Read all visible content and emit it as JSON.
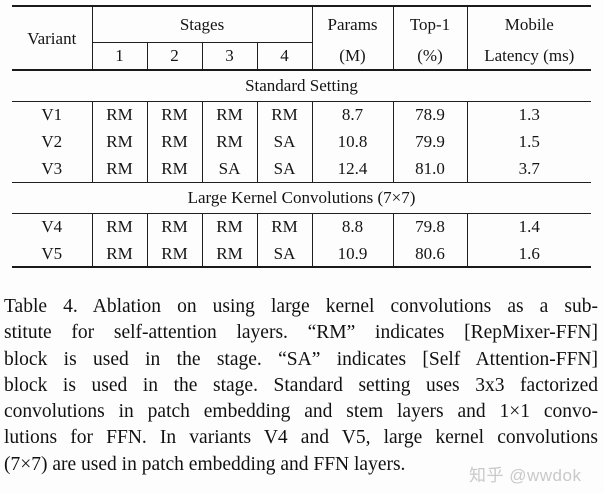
{
  "table": {
    "header": {
      "variant": "Variant",
      "stages_group": "Stages",
      "stage_cols": [
        "1",
        "2",
        "3",
        "4"
      ],
      "params_top": "Params",
      "params_bottom": "(M)",
      "top1_top": "Top-1",
      "top1_bottom": "(%)",
      "mobile_top": "Mobile",
      "mobile_bottom": "Latency (ms)"
    },
    "sections": [
      {
        "heading": "Standard Setting",
        "rows": [
          [
            "V1",
            "RM",
            "RM",
            "RM",
            "RM",
            "8.7",
            "78.9",
            "1.3"
          ],
          [
            "V2",
            "RM",
            "RM",
            "RM",
            "SA",
            "10.8",
            "79.9",
            "1.5"
          ],
          [
            "V3",
            "RM",
            "RM",
            "SA",
            "SA",
            "12.4",
            "81.0",
            "3.7"
          ]
        ]
      },
      {
        "heading": "Large Kernel Convolutions (7×7)",
        "rows": [
          [
            "V4",
            "RM",
            "RM",
            "RM",
            "RM",
            "8.8",
            "79.8",
            "1.4"
          ],
          [
            "V5",
            "RM",
            "RM",
            "RM",
            "SA",
            "10.9",
            "80.6",
            "1.6"
          ]
        ]
      }
    ]
  },
  "caption": {
    "lines": [
      "Table 4. Ablation on using large kernel convolutions as a sub-",
      "stitute for self-attention layers. “RM” indicates [RepMixer-FFN]",
      "block is used in the stage. “SA” indicates [Self Attention-FFN]",
      "block is used in the stage. Standard setting uses 3x3 factorized",
      "convolutions in patch embedding and stem layers and 1×1 convo-",
      "lutions for FFN. In variants V4 and V5, large kernel convolutions",
      "(7×7) are used in patch embedding and FFN layers."
    ]
  },
  "watermark": "知乎 @wwdok",
  "colors": {
    "background": "#fdfdfd",
    "text": "#141414",
    "rule": "#1a1a1a",
    "watermark": "#c9c9c9"
  }
}
